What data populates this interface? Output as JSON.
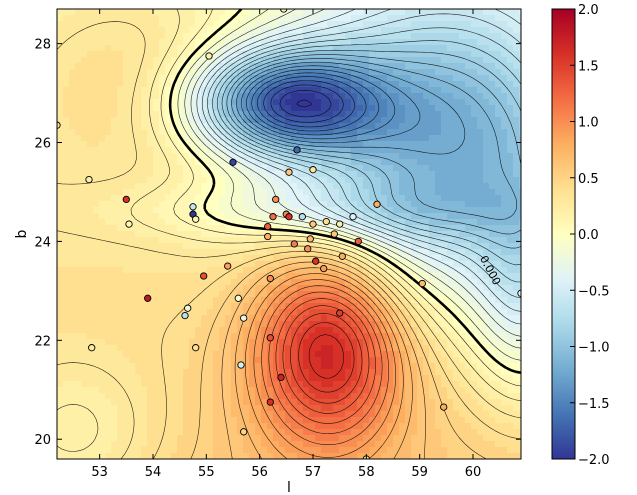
{
  "chart_data": {
    "type": "contour",
    "xlabel": "l",
    "ylabel": "b",
    "xlim": [
      52.2,
      60.9
    ],
    "ylim": [
      19.6,
      28.7
    ],
    "x_ticks": [
      "53",
      "54",
      "55",
      "56",
      "57",
      "58",
      "59",
      "60"
    ],
    "y_ticks": [
      "20",
      "22",
      "24",
      "26",
      "28"
    ],
    "colorbar": {
      "range": [
        -2.0,
        2.0
      ],
      "ticks": [
        "2.0",
        "1.5",
        "1.0",
        "0.5",
        "0.0",
        "−0.5",
        "−1.0",
        "−1.5",
        "−2.0"
      ],
      "colormap": [
        "#313695",
        "#4575b4",
        "#74add1",
        "#abd9e9",
        "#e0f3f8",
        "#ffffbf",
        "#fee090",
        "#fdae61",
        "#f46d43",
        "#d73027",
        "#a50026"
      ]
    },
    "contour_label": "0.000",
    "field_components": [
      {
        "kind": "constant",
        "value": 0.55
      },
      {
        "kind": "linear",
        "ax": 0.0,
        "ay": -0.05
      },
      {
        "kind": "gaussian",
        "x": 57.3,
        "y": 21.9,
        "amp": 1.35,
        "sx": 1.0,
        "sy": 1.4
      },
      {
        "kind": "gaussian",
        "x": 56.5,
        "y": 26.8,
        "amp": -1.75,
        "sx": 1.2,
        "sy": 0.75
      },
      {
        "kind": "gaussian",
        "x": 59.5,
        "y": 26.0,
        "amp": -1.4,
        "sx": 2.0,
        "sy": 2.2
      },
      {
        "kind": "gaussian",
        "x": 61.0,
        "y": 23.0,
        "amp": -0.6,
        "sx": 0.7,
        "sy": 1.6
      },
      {
        "kind": "gaussian",
        "x": 57.2,
        "y": 24.6,
        "amp": -0.35,
        "sx": 2.5,
        "sy": 0.45
      },
      {
        "kind": "gaussian",
        "x": 52.5,
        "y": 20.0,
        "amp": -0.35,
        "sx": 1.2,
        "sy": 1.2
      },
      {
        "kind": "gaussian",
        "x": 53.5,
        "y": 27.5,
        "amp": 0.25,
        "sx": 1.5,
        "sy": 1.5
      }
    ],
    "points": [
      {
        "x": 52.2,
        "y": 26.35,
        "v": 0.4
      },
      {
        "x": 52.8,
        "y": 25.25,
        "v": 0.2
      },
      {
        "x": 53.5,
        "y": 24.85,
        "v": 1.6
      },
      {
        "x": 53.55,
        "y": 24.35,
        "v": 0.1
      },
      {
        "x": 52.85,
        "y": 21.85,
        "v": 0.3
      },
      {
        "x": 53.9,
        "y": 22.85,
        "v": 1.8
      },
      {
        "x": 55.05,
        "y": 27.75,
        "v": 0.2
      },
      {
        "x": 55.5,
        "y": 25.6,
        "v": -1.9
      },
      {
        "x": 54.75,
        "y": 24.7,
        "v": -0.6
      },
      {
        "x": 54.75,
        "y": 24.55,
        "v": -2.0
      },
      {
        "x": 54.8,
        "y": 24.45,
        "v": 0.1
      },
      {
        "x": 54.95,
        "y": 23.3,
        "v": 1.4
      },
      {
        "x": 55.4,
        "y": 23.5,
        "v": 0.9
      },
      {
        "x": 54.65,
        "y": 22.65,
        "v": -0.2
      },
      {
        "x": 54.6,
        "y": 22.5,
        "v": -0.7
      },
      {
        "x": 55.6,
        "y": 22.85,
        "v": -0.1
      },
      {
        "x": 54.8,
        "y": 21.85,
        "v": 0.4
      },
      {
        "x": 55.7,
        "y": 22.45,
        "v": -0.3
      },
      {
        "x": 55.65,
        "y": 21.5,
        "v": -0.5
      },
      {
        "x": 55.7,
        "y": 20.15,
        "v": 0.5
      },
      {
        "x": 56.45,
        "y": 28.7,
        "v": 0.1
      },
      {
        "x": 56.7,
        "y": 25.85,
        "v": -1.7
      },
      {
        "x": 56.55,
        "y": 25.4,
        "v": 0.6
      },
      {
        "x": 57.0,
        "y": 25.45,
        "v": 0.3
      },
      {
        "x": 56.3,
        "y": 24.85,
        "v": 1.0
      },
      {
        "x": 56.25,
        "y": 24.5,
        "v": 1.2
      },
      {
        "x": 56.5,
        "y": 24.55,
        "v": 1.0
      },
      {
        "x": 56.55,
        "y": 24.5,
        "v": 1.6
      },
      {
        "x": 56.8,
        "y": 24.5,
        "v": -0.7
      },
      {
        "x": 57.0,
        "y": 24.35,
        "v": 0.6
      },
      {
        "x": 57.25,
        "y": 24.4,
        "v": 0.4
      },
      {
        "x": 57.5,
        "y": 24.35,
        "v": 0.2
      },
      {
        "x": 57.75,
        "y": 24.5,
        "v": -0.4
      },
      {
        "x": 58.2,
        "y": 24.75,
        "v": 0.8
      },
      {
        "x": 56.15,
        "y": 24.3,
        "v": 1.3
      },
      {
        "x": 56.15,
        "y": 24.1,
        "v": 0.8
      },
      {
        "x": 56.65,
        "y": 23.95,
        "v": 1.1
      },
      {
        "x": 56.95,
        "y": 24.05,
        "v": 0.7
      },
      {
        "x": 57.4,
        "y": 24.15,
        "v": 0.6
      },
      {
        "x": 57.85,
        "y": 24.0,
        "v": 1.3
      },
      {
        "x": 56.9,
        "y": 23.85,
        "v": 1.0
      },
      {
        "x": 57.05,
        "y": 23.6,
        "v": 1.6
      },
      {
        "x": 57.55,
        "y": 23.7,
        "v": 0.8
      },
      {
        "x": 56.2,
        "y": 23.25,
        "v": 1.0
      },
      {
        "x": 57.2,
        "y": 23.45,
        "v": 0.9
      },
      {
        "x": 59.05,
        "y": 23.15,
        "v": 0.7
      },
      {
        "x": 57.5,
        "y": 22.55,
        "v": 1.5
      },
      {
        "x": 56.2,
        "y": 22.05,
        "v": 1.4
      },
      {
        "x": 56.4,
        "y": 21.25,
        "v": 1.7
      },
      {
        "x": 56.2,
        "y": 20.75,
        "v": 1.6
      },
      {
        "x": 59.45,
        "y": 20.65,
        "v": 0.8
      },
      {
        "x": 58.0,
        "y": 19.6,
        "v": 0.3
      },
      {
        "x": 60.9,
        "y": 22.95,
        "v": -0.3
      }
    ]
  }
}
